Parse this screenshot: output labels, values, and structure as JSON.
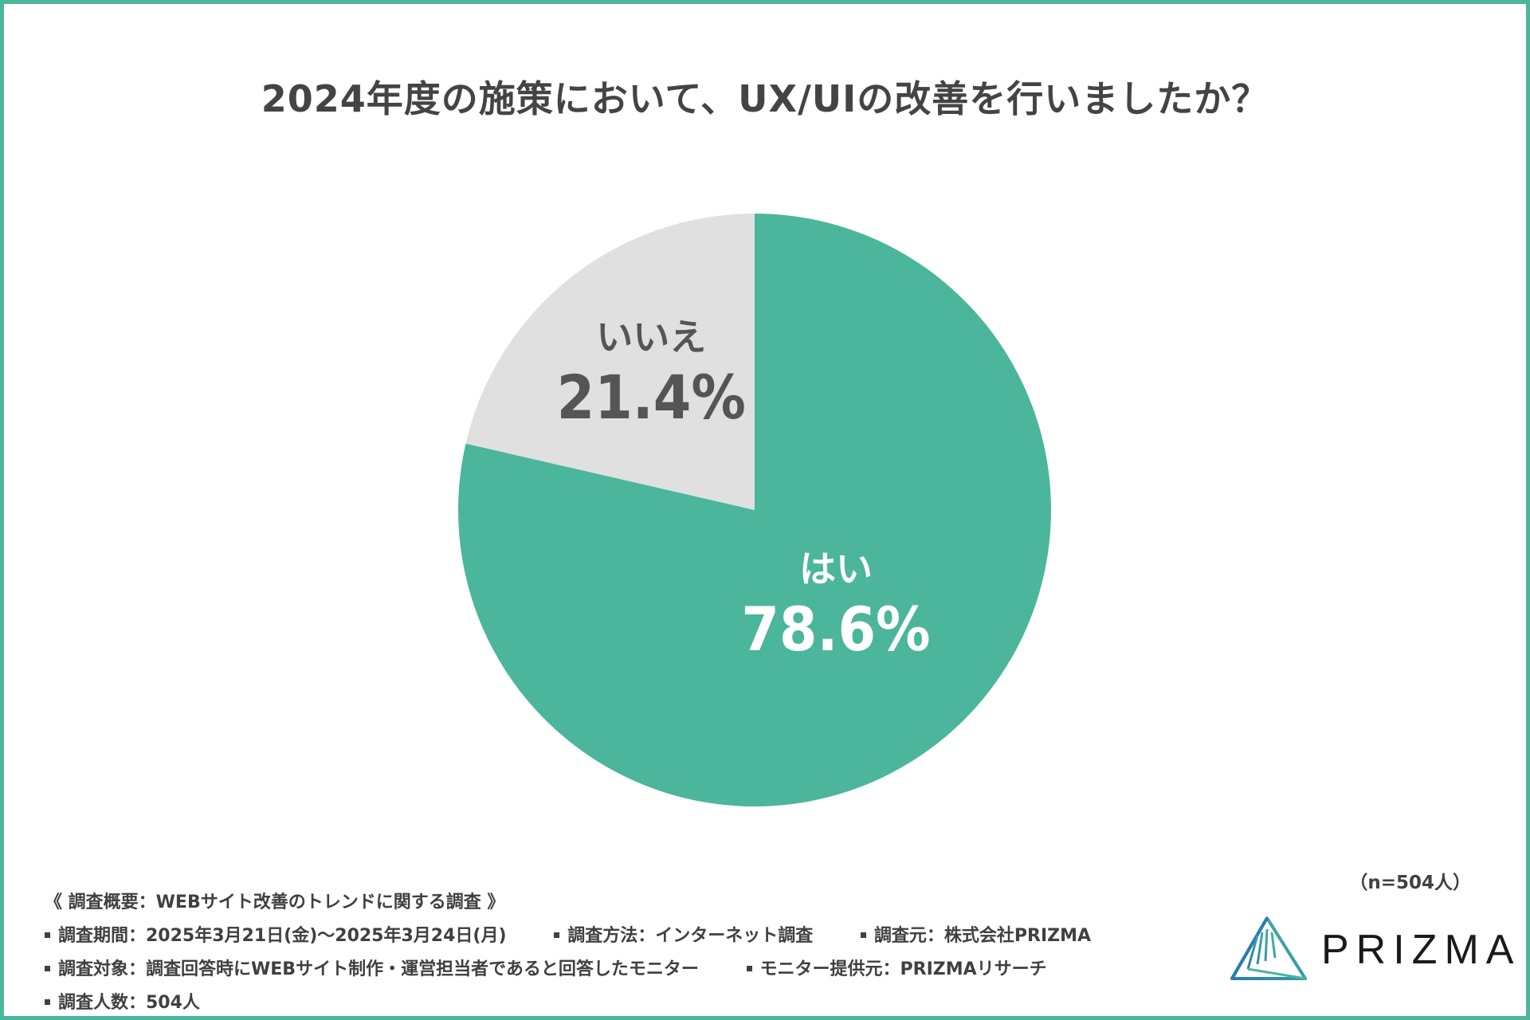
{
  "title": "2024年度の施策において、UX/UIの改善を行いましたか？",
  "sample_note": "（n=504人）",
  "chart_data": {
    "type": "pie",
    "title": "2024年度の施策において、UX/UIの改善を行いましたか？",
    "categories": [
      "はい",
      "いいえ"
    ],
    "values": [
      78.6,
      21.4
    ],
    "value_labels": [
      "78.6%",
      "21.4%"
    ],
    "colors": [
      "#4bb69b",
      "#e0e0e0"
    ],
    "label_colors": [
      "#ffffff",
      "#555555"
    ],
    "start": "12 o'clock",
    "direction": "clockwise"
  },
  "footer": {
    "heading": "《 調査概要：WEBサイト改善のトレンドに関する調査 》",
    "rows": [
      [
        "調査期間：2025年3月21日(金)〜2025年3月24日(月)",
        "調査方法：インターネット調査",
        "調査元：株式会社PRIZMA"
      ],
      [
        "調査対象：調査回答時にWEBサイト制作・運営担当者であると回答したモニター",
        "モニター提供元：PRIZMAリサーチ"
      ],
      [
        "調査人数：504人"
      ]
    ]
  },
  "logo": {
    "text": "PRIZMA",
    "colors": [
      "#2a7bb5",
      "#4bb69b"
    ]
  }
}
